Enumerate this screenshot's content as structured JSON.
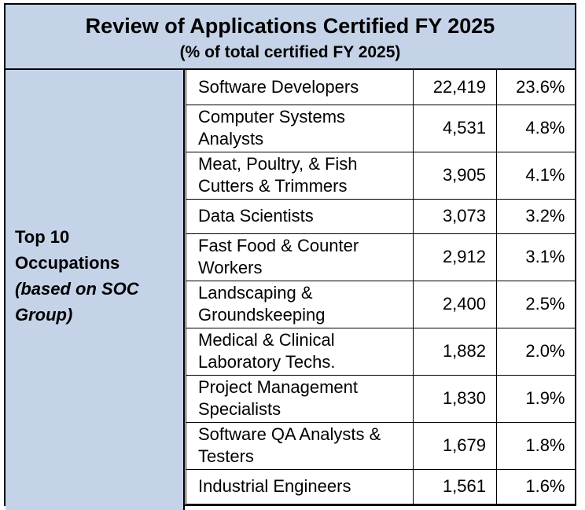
{
  "header": {
    "title": "Review of Applications Certified FY 2025",
    "subtitle": "(% of total certified FY 2025)"
  },
  "sidebar": {
    "line1": "Top 10",
    "line2": "Occupations",
    "line3": "(based on SOC",
    "line4": "Group)"
  },
  "rows": [
    {
      "occupation": "Software Developers",
      "count": "22,419",
      "percent": "23.6%"
    },
    {
      "occupation": "Computer Systems Analysts",
      "count": "4,531",
      "percent": "4.8%"
    },
    {
      "occupation": "Meat, Poultry, & Fish Cutters & Trimmers",
      "count": "3,905",
      "percent": "4.1%"
    },
    {
      "occupation": "Data Scientists",
      "count": "3,073",
      "percent": "3.2%"
    },
    {
      "occupation": "Fast Food & Counter Workers",
      "count": "2,912",
      "percent": "3.1%"
    },
    {
      "occupation": "Landscaping & Groundskeeping",
      "count": "2,400",
      "percent": "2.5%"
    },
    {
      "occupation": "Medical & Clinical Laboratory Techs.",
      "count": "1,882",
      "percent": "2.0%"
    },
    {
      "occupation": "Project Management Specialists",
      "count": "1,830",
      "percent": "1.9%"
    },
    {
      "occupation": "Software QA Analysts & Testers",
      "count": "1,679",
      "percent": "1.8%"
    },
    {
      "occupation": "Industrial Engineers",
      "count": "1,561",
      "percent": "1.6%"
    }
  ],
  "colors": {
    "header_bg": "#c5d3e8",
    "border": "#000000"
  }
}
